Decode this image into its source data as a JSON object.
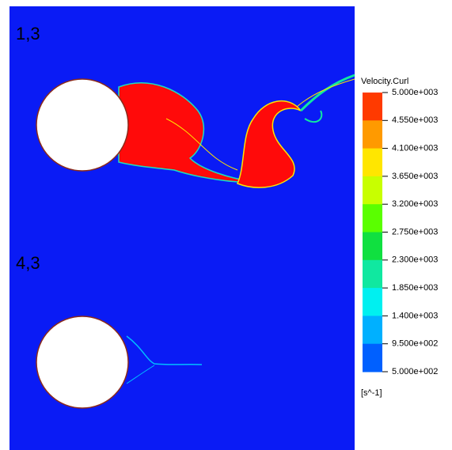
{
  "panels": [
    {
      "label": "1,3"
    },
    {
      "label": "4,3"
    }
  ],
  "legend": {
    "title": "Velocity.Curl",
    "labels": [
      "5.000e+003",
      "4.550e+003",
      "4.100e+003",
      "3.650e+003",
      "3.200e+003",
      "2.750e+003",
      "2.300e+003",
      "1.850e+003",
      "1.400e+003",
      "9.500e+002",
      "5.000e+002"
    ],
    "colors": [
      "#ff3a00",
      "#ff9a00",
      "#ffe600",
      "#c8ff00",
      "#5aff00",
      "#10e040",
      "#10e8a0",
      "#00f0f0",
      "#00b0ff",
      "#0060ff",
      "#0028ff"
    ],
    "unit": "[s^-1]"
  }
}
